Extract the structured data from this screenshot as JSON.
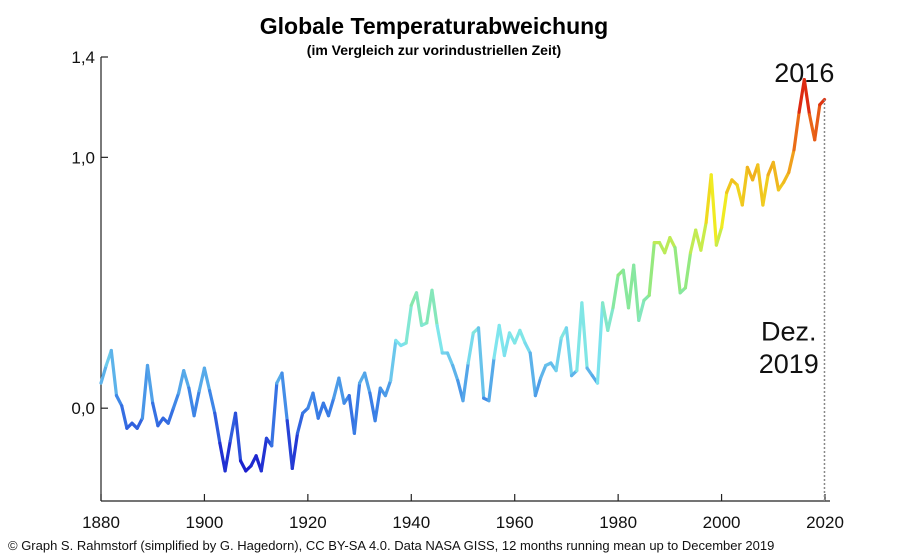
{
  "chart_data": {
    "type": "line",
    "title": "Globale Temperaturabweichung",
    "subtitle": "(im Vergleich zur vorindustriellen Zeit)",
    "xlabel": "",
    "ylabel": "",
    "xlim": [
      1880,
      2020
    ],
    "ylim": [
      -0.37,
      1.4
    ],
    "x_ticks": [
      {
        "value": 1880,
        "label": "1880"
      },
      {
        "value": 1900,
        "label": "1900"
      },
      {
        "value": 1920,
        "label": "1920"
      },
      {
        "value": 1940,
        "label": "1940"
      },
      {
        "value": 1960,
        "label": "1960"
      },
      {
        "value": 1980,
        "label": "1980"
      },
      {
        "value": 2000,
        "label": "2000"
      },
      {
        "value": 2020,
        "label": "2020"
      }
    ],
    "y_ticks": [
      {
        "value": 0.0,
        "label": "0,0"
      },
      {
        "value": 1.0,
        "label": "1,0"
      },
      {
        "value": 1.4,
        "label": "1,4"
      }
    ],
    "grid": false,
    "line_colors": [
      "#1a1acc",
      "#3a7fe6",
      "#7fe6ee",
      "#8ae88a",
      "#f0ee22",
      "#f08a1a",
      "#d80f0f"
    ],
    "color_value_range": [
      -0.25,
      1.3
    ],
    "annotations": [
      {
        "text": "2016",
        "x": 2016,
        "y": 1.3
      },
      {
        "text": "Dez.",
        "x": 2013,
        "y": 0.27
      },
      {
        "text": "2019",
        "x": 2013,
        "y": 0.14
      }
    ],
    "end_marker": {
      "x": 2019.9,
      "y_from": -0.37,
      "y_to": 1.23
    },
    "series": [
      {
        "x": [
          1880,
          1881,
          1882,
          1883,
          1884,
          1885,
          1886,
          1887,
          1888,
          1889,
          1890,
          1891,
          1892,
          1893,
          1894,
          1895,
          1896,
          1897,
          1898,
          1899,
          1900,
          1901,
          1902,
          1903,
          1904,
          1905,
          1906,
          1907,
          1908,
          1909,
          1910,
          1911,
          1912,
          1913,
          1914,
          1915,
          1916,
          1917,
          1918,
          1919,
          1920,
          1921,
          1922,
          1923,
          1924,
          1925,
          1926,
          1927,
          1928,
          1929,
          1930,
          1931,
          1932,
          1933,
          1934,
          1935,
          1936,
          1937,
          1938,
          1939,
          1940,
          1941,
          1942,
          1943,
          1944,
          1945,
          1946,
          1947,
          1948,
          1949,
          1950,
          1951,
          1952,
          1953,
          1954,
          1955,
          1956,
          1957,
          1958,
          1959,
          1960,
          1961,
          1962,
          1963,
          1964,
          1965,
          1966,
          1967,
          1968,
          1969,
          1970,
          1971,
          1972,
          1973,
          1974,
          1975,
          1976,
          1977,
          1978,
          1979,
          1980,
          1981,
          1982,
          1983,
          1984,
          1985,
          1986,
          1987,
          1988,
          1989,
          1990,
          1991,
          1992,
          1993,
          1994,
          1995,
          1996,
          1997,
          1998,
          1999,
          2000,
          2001,
          2002,
          2003,
          2004,
          2005,
          2006,
          2007,
          2008,
          2009,
          2010,
          2011,
          2012,
          2013,
          2014,
          2015,
          2016,
          2017,
          2018,
          2019,
          2019.9
        ],
        "values": [
          0.1,
          0.17,
          0.23,
          0.05,
          0.01,
          -0.08,
          -0.06,
          -0.08,
          -0.04,
          0.17,
          0.02,
          -0.07,
          -0.04,
          -0.06,
          0.0,
          0.06,
          0.15,
          0.08,
          -0.03,
          0.07,
          0.16,
          0.07,
          -0.02,
          -0.14,
          -0.25,
          -0.13,
          -0.02,
          -0.21,
          -0.25,
          -0.23,
          -0.19,
          -0.25,
          -0.12,
          -0.15,
          0.1,
          0.14,
          -0.05,
          -0.24,
          -0.1,
          -0.02,
          0.0,
          0.06,
          -0.04,
          0.02,
          -0.03,
          0.04,
          0.12,
          0.02,
          0.05,
          -0.1,
          0.1,
          0.14,
          0.06,
          -0.05,
          0.08,
          0.05,
          0.11,
          0.27,
          0.25,
          0.26,
          0.41,
          0.46,
          0.33,
          0.34,
          0.47,
          0.33,
          0.22,
          0.22,
          0.17,
          0.11,
          0.03,
          0.18,
          0.3,
          0.32,
          0.04,
          0.03,
          0.2,
          0.33,
          0.21,
          0.3,
          0.26,
          0.31,
          0.26,
          0.22,
          0.05,
          0.12,
          0.17,
          0.18,
          0.15,
          0.28,
          0.32,
          0.13,
          0.15,
          0.42,
          0.16,
          0.13,
          0.1,
          0.42,
          0.31,
          0.4,
          0.53,
          0.55,
          0.4,
          0.57,
          0.35,
          0.43,
          0.45,
          0.66,
          0.66,
          0.62,
          0.68,
          0.64,
          0.46,
          0.48,
          0.62,
          0.71,
          0.63,
          0.74,
          0.93,
          0.65,
          0.72,
          0.86,
          0.91,
          0.89,
          0.81,
          0.96,
          0.91,
          0.97,
          0.81,
          0.93,
          0.98,
          0.87,
          0.9,
          0.94,
          1.03,
          1.18,
          1.31,
          1.17,
          1.07,
          1.21,
          1.23
        ]
      }
    ]
  },
  "credit": "© Graph S. Rahmstorf (simplified by G. Hagedorn), CC BY-SA 4.0. Data NASA GISS, 12 months running mean up to December 2019"
}
